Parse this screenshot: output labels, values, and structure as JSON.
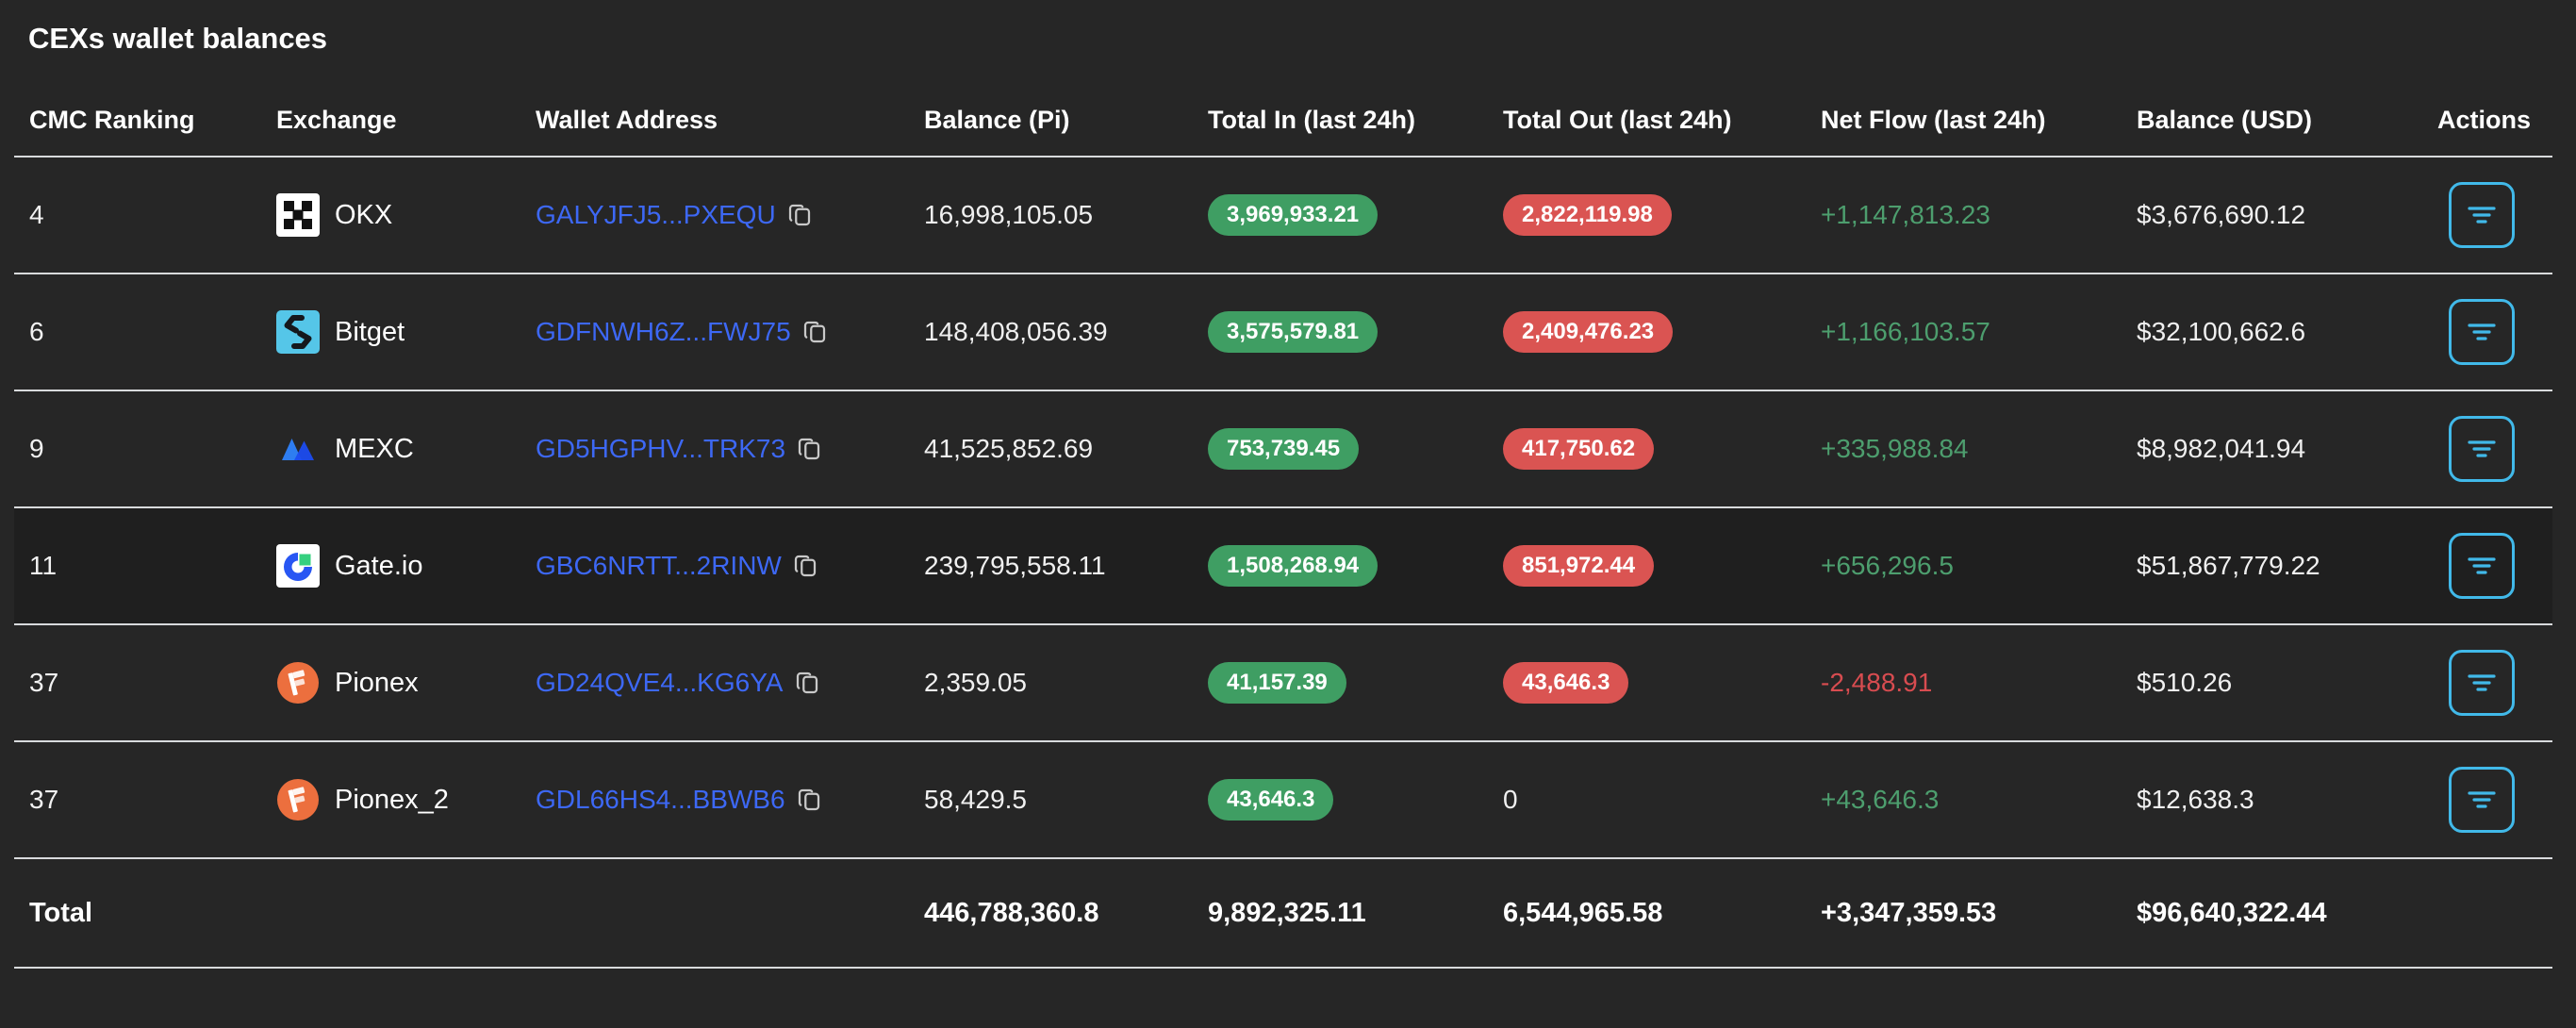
{
  "title": "CEXs wallet balances",
  "columns": [
    "CMC Ranking",
    "Exchange",
    "Wallet Address",
    "Balance (Pi)",
    "Total In (last 24h)",
    "Total Out (last 24h)",
    "Net Flow (last 24h)",
    "Balance (USD)",
    "Actions"
  ],
  "rows": [
    {
      "rank": "4",
      "exchange": "OKX",
      "icon": "okx-icon",
      "address": "GALYJFJ5...PXEQU",
      "balance_pi": "16,998,105.05",
      "total_in": "3,969,933.21",
      "total_in_badge": true,
      "total_out": "2,822,119.98",
      "total_out_badge": true,
      "net_flow": "+1,147,813.23",
      "net_flow_dir": "positive",
      "balance_usd": "$3,676,690.12",
      "highlighted": false
    },
    {
      "rank": "6",
      "exchange": "Bitget",
      "icon": "bitget-icon",
      "address": "GDFNWH6Z...FWJ75",
      "balance_pi": "148,408,056.39",
      "total_in": "3,575,579.81",
      "total_in_badge": true,
      "total_out": "2,409,476.23",
      "total_out_badge": true,
      "net_flow": "+1,166,103.57",
      "net_flow_dir": "positive",
      "balance_usd": "$32,100,662.6",
      "highlighted": false
    },
    {
      "rank": "9",
      "exchange": "MEXC",
      "icon": "mexc-icon",
      "address": "GD5HGPHV...TRK73",
      "balance_pi": "41,525,852.69",
      "total_in": "753,739.45",
      "total_in_badge": true,
      "total_out": "417,750.62",
      "total_out_badge": true,
      "net_flow": "+335,988.84",
      "net_flow_dir": "positive",
      "balance_usd": "$8,982,041.94",
      "highlighted": false
    },
    {
      "rank": "11",
      "exchange": "Gate.io",
      "icon": "gateio-icon",
      "address": "GBC6NRTT...2RINW",
      "balance_pi": "239,795,558.11",
      "total_in": "1,508,268.94",
      "total_in_badge": true,
      "total_out": "851,972.44",
      "total_out_badge": true,
      "net_flow": "+656,296.5",
      "net_flow_dir": "positive",
      "balance_usd": "$51,867,779.22",
      "highlighted": true
    },
    {
      "rank": "37",
      "exchange": "Pionex",
      "icon": "pionex-icon",
      "address": "GD24QVE4...KG6YA",
      "balance_pi": "2,359.05",
      "total_in": "41,157.39",
      "total_in_badge": true,
      "total_out": "43,646.3",
      "total_out_badge": true,
      "net_flow": "-2,488.91",
      "net_flow_dir": "negative",
      "balance_usd": "$510.26",
      "highlighted": false
    },
    {
      "rank": "37",
      "exchange": "Pionex_2",
      "icon": "pionex-icon",
      "address": "GDL66HS4...BBWB6",
      "balance_pi": "58,429.5",
      "total_in": "43,646.3",
      "total_in_badge": true,
      "total_out": "0",
      "total_out_badge": false,
      "net_flow": "+43,646.3",
      "net_flow_dir": "positive",
      "balance_usd": "$12,638.3",
      "highlighted": false
    }
  ],
  "total": {
    "label": "Total",
    "balance_pi": "446,788,360.8",
    "total_in": "9,892,325.11",
    "total_out": "6,544,965.58",
    "net_flow": "+3,347,359.53",
    "net_flow_dir": "positive",
    "balance_usd": "$96,640,322.44"
  },
  "icons": {
    "actions_button": "filter-icon",
    "address_copy": "copy-icon"
  },
  "colors": {
    "background": "#262626",
    "row_highlight": "#1f1f1f",
    "separator": "#d8dadc",
    "address_blue": "#3d68f5",
    "badge_green": "#3f9e63",
    "badge_red": "#da5452",
    "flow_green": "#4d9e6e",
    "flow_red": "#d84c50",
    "action_cyan": "#41b9e9"
  }
}
